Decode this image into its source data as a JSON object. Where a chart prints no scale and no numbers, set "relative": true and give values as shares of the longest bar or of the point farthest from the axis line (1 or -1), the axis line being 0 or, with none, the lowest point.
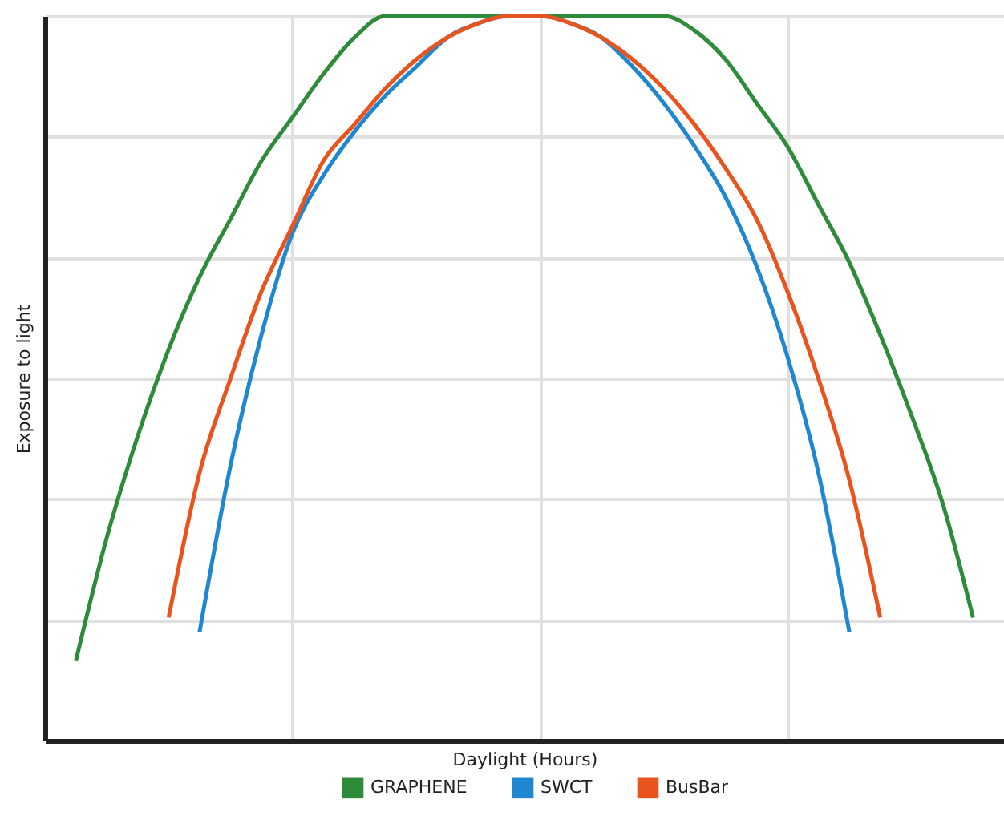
{
  "chart_data": {
    "type": "line",
    "xlabel": "Daylight (Hours)",
    "ylabel": "Exposure to light",
    "relative": true,
    "grid": true,
    "legend": "bottom",
    "tick_labels": false,
    "categories": [
      null,
      null,
      null,
      null,
      null,
      null,
      null,
      null,
      null,
      null,
      null,
      null,
      null,
      null,
      null,
      null,
      null,
      null,
      null,
      null,
      null,
      null,
      null,
      null,
      null,
      null,
      null,
      null,
      null,
      null,
      null,
      null
    ],
    "series": [
      {
        "name": "GRAPHENE",
        "color": "#2e8b3a",
        "values": [
          null,
          0.11,
          0.28,
          0.42,
          0.54,
          0.64,
          0.72,
          0.8,
          0.86,
          0.92,
          0.97,
          1,
          1,
          1,
          1,
          1,
          1,
          1,
          1,
          1,
          1,
          0.98,
          0.94,
          0.88,
          0.82,
          0.74,
          0.66,
          0.56,
          0.45,
          0.33,
          0.17,
          null
        ]
      },
      {
        "name": "SWCT",
        "color": "#1f87d0",
        "values": [
          null,
          null,
          null,
          null,
          null,
          0.15,
          0.38,
          0.56,
          0.7,
          0.78,
          0.84,
          0.89,
          0.93,
          0.97,
          0.99,
          1,
          1,
          0.99,
          0.97,
          0.93,
          0.88,
          0.82,
          0.75,
          0.655,
          0.53,
          0.37,
          0.15,
          null,
          null,
          null,
          null,
          null
        ]
      },
      {
        "name": "BusBar",
        "color": "#e9541e",
        "values": [
          null,
          null,
          null,
          null,
          0.17,
          0.37,
          0.5,
          0.62,
          0.71,
          0.8,
          0.85,
          0.9,
          0.94,
          0.97,
          0.99,
          1,
          1,
          0.99,
          0.97,
          0.94,
          0.9,
          0.85,
          0.79,
          0.72,
          0.62,
          0.5,
          0.36,
          0.17,
          null,
          null,
          null,
          null
        ]
      }
    ]
  }
}
